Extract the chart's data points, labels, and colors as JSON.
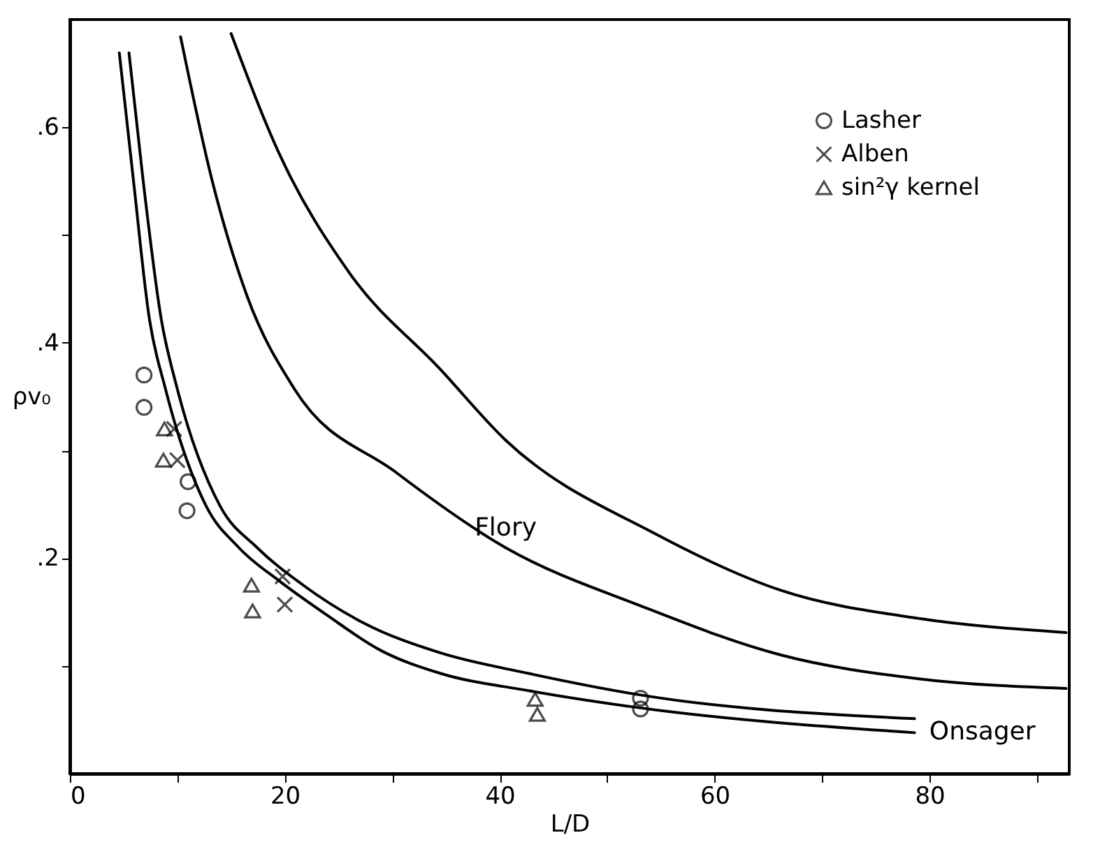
{
  "chart_data": {
    "type": "scatter",
    "xlabel": "L/D",
    "ylabel": "ρv₀",
    "xlim": [
      0,
      93
    ],
    "ylim": [
      0,
      0.7
    ],
    "xticks": [
      0,
      {
        "value": 10,
        "label": null
      },
      20,
      {
        "value": 30,
        "label": null
      },
      40,
      {
        "value": 50,
        "label": null
      },
      60,
      {
        "value": 70,
        "label": null
      },
      80,
      {
        "value": 90,
        "label": null
      }
    ],
    "yticks": [
      {
        "value": 0.1,
        "label": null
      },
      {
        "value": 0.2,
        "label": ".2"
      },
      {
        "value": 0.3,
        "label": null
      },
      {
        "value": 0.4,
        "label": ".4"
      },
      {
        "value": 0.5,
        "label": null
      },
      {
        "value": 0.6,
        "label": ".6"
      }
    ],
    "grid": false,
    "legend": "top right",
    "series": [
      {
        "type": "line",
        "color": "#000000",
        "x": [
          4.6,
          5.9,
          7.4,
          8.9,
          12.7,
          15.7,
          19.6,
          23.8,
          29.0,
          34.5,
          42.7,
          53.1,
          78.6
        ],
        "values": [
          0.669,
          0.552,
          0.422,
          0.357,
          0.248,
          0.21,
          0.178,
          0.148,
          0.114,
          0.093,
          0.077,
          0.061,
          0.038
        ]
      },
      {
        "type": "line",
        "color": "#000000",
        "x": [
          5.5,
          6.8,
          8.5,
          10.0,
          14.0,
          17.4,
          21.7,
          27.3,
          34.5,
          42.7,
          53.1,
          78.6
        ],
        "values": [
          0.669,
          0.552,
          0.422,
          0.357,
          0.248,
          0.21,
          0.175,
          0.14,
          0.112,
          0.093,
          0.073,
          0.051
        ]
      },
      {
        "type": "line",
        "color": "#000000",
        "x": [
          10.3,
          13.2,
          16.5,
          20.9,
          30.3,
          40.5,
          53.3,
          66.2,
          79.0,
          92.7
        ],
        "values": [
          0.684,
          0.552,
          0.443,
          0.357,
          0.28,
          0.21,
          0.155,
          0.11,
          0.088,
          0.079
        ]
      },
      {
        "type": "line",
        "color": "#000000",
        "x": [
          15.0,
          19.6,
          26.0,
          34.5,
          40.5,
          54.6,
          66.2,
          79.0,
          92.7
        ],
        "values": [
          0.687,
          0.573,
          0.465,
          0.375,
          0.31,
          0.222,
          0.17,
          0.144,
          0.131
        ]
      },
      {
        "name": "Lasher",
        "marker": "circle",
        "color": "#000000",
        "x": [
          6.9,
          6.9,
          11.0,
          10.9,
          53.1,
          53.1
        ],
        "values": [
          0.37,
          0.34,
          0.271,
          0.244,
          0.07,
          0.06
        ]
      },
      {
        "name": "Alben",
        "marker": "cross",
        "color": "#000000",
        "x": [
          9.7,
          10.0,
          19.8,
          20.0
        ],
        "values": [
          0.32,
          0.291,
          0.183,
          0.157
        ]
      },
      {
        "name": "sin²γ kernel",
        "marker": "triangle",
        "color": "#000000",
        "x": [
          8.8,
          8.7,
          16.9,
          17.0,
          43.3,
          43.5
        ],
        "values": [
          0.32,
          0.291,
          0.175,
          0.151,
          0.069,
          0.055
        ]
      }
    ],
    "annotations": [
      "Flory",
      "Onsager"
    ]
  }
}
